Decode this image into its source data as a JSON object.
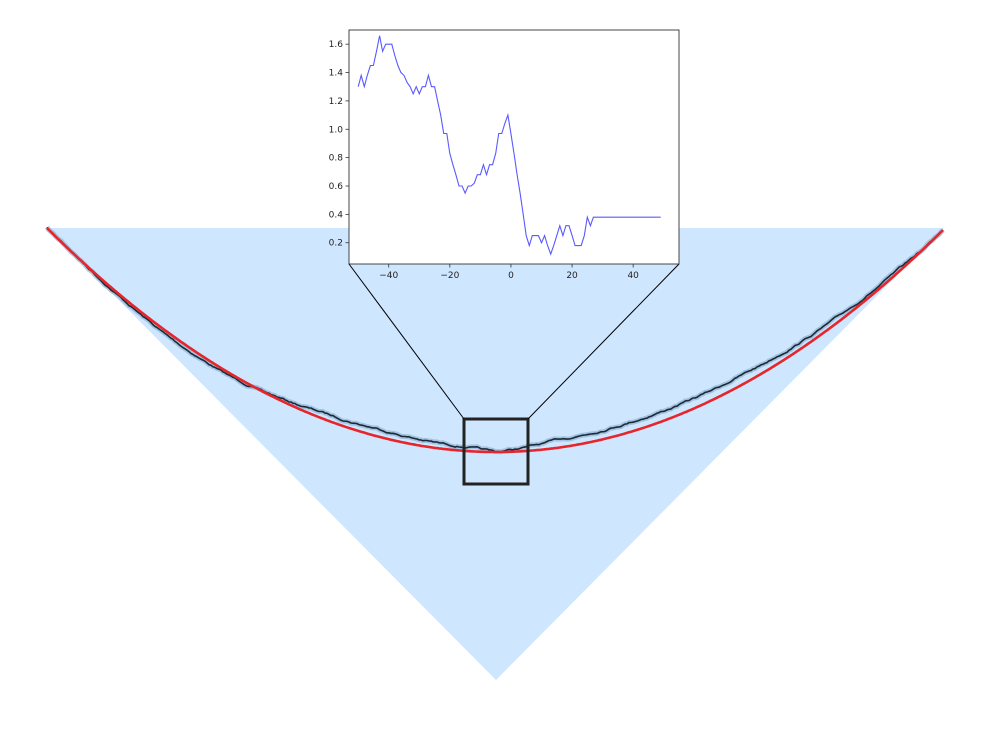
{
  "colors": {
    "fill": "#cfe6ff",
    "interface": "#1c2a36",
    "interface_halo": "#8fb3d6",
    "limit_curve": "#e6262b",
    "zoom_box": "#222222",
    "connector": "#000000",
    "inset_line": "#5a5aff",
    "background": "#ffffff"
  },
  "chart_data": [
    {
      "type": "area",
      "description_none": "",
      "elements": [
        "light blue wedge region",
        "rough black interface",
        "smooth red limit curve",
        "black zoom rectangle with connector lines"
      ],
      "grid": false,
      "axes_visible": false
    },
    {
      "type": "line",
      "xlim": [
        -53,
        55
      ],
      "ylim": [
        0.05,
        1.7
      ],
      "grid": false,
      "x_ticks": [
        "−40",
        "−20",
        "0",
        "20",
        "40"
      ],
      "x_tick_values": [
        -40,
        -20,
        0,
        20,
        40
      ],
      "y_ticks": [
        "0.2",
        "0.4",
        "0.6",
        "0.8",
        "1.0",
        "1.2",
        "1.4",
        "1.6"
      ],
      "y_tick_values": [
        0.2,
        0.4,
        0.6,
        0.8,
        1.0,
        1.2,
        1.4,
        1.6
      ],
      "series": [
        {
          "x": [
            -50,
            -49,
            -48,
            -47,
            -46,
            -45,
            -44,
            -43,
            -42,
            -41,
            -40,
            -39,
            -38,
            -37,
            -36,
            -35,
            -34,
            -33,
            -32,
            -31,
            -30,
            -29,
            -28,
            -27,
            -26,
            -25,
            -24,
            -23,
            -22,
            -21,
            -20,
            -19,
            -18,
            -17,
            -16,
            -15,
            -14,
            -13,
            -12,
            -11,
            -10,
            -9,
            -8,
            -7,
            -6,
            -5,
            -4,
            -3,
            -2,
            -1,
            0,
            1,
            2,
            3,
            4,
            5,
            6,
            7,
            8,
            9,
            10,
            11,
            12,
            13,
            14,
            15,
            16,
            17,
            18,
            19,
            20,
            21,
            22,
            23,
            24,
            25,
            26,
            27,
            28,
            29,
            30,
            31,
            32,
            33,
            34,
            35,
            36,
            37,
            38,
            39,
            40,
            41,
            42,
            43,
            44,
            45,
            46,
            47,
            48,
            49
          ],
          "y": [
            1.3,
            1.38,
            1.3,
            1.38,
            1.45,
            1.45,
            1.55,
            1.66,
            1.55,
            1.6,
            1.6,
            1.6,
            1.52,
            1.45,
            1.4,
            1.38,
            1.33,
            1.3,
            1.25,
            1.3,
            1.25,
            1.3,
            1.3,
            1.38,
            1.3,
            1.3,
            1.2,
            1.1,
            0.97,
            0.97,
            0.83,
            0.75,
            0.68,
            0.6,
            0.6,
            0.55,
            0.6,
            0.6,
            0.62,
            0.68,
            0.68,
            0.75,
            0.68,
            0.75,
            0.75,
            0.83,
            0.97,
            0.97,
            1.04,
            1.1,
            0.97,
            0.83,
            0.68,
            0.55,
            0.4,
            0.25,
            0.18,
            0.25,
            0.25,
            0.25,
            0.2,
            0.25,
            0.18,
            0.12,
            0.18,
            0.25,
            0.32,
            0.25,
            0.32,
            0.32,
            0.25,
            0.18,
            0.18,
            0.18,
            0.25,
            0.38,
            0.32,
            0.38,
            0.38,
            0.38,
            0.38,
            0.38,
            0.38,
            0.38,
            0.38,
            0.38,
            0.38,
            0.38,
            0.38,
            0.38,
            0.38,
            0.38,
            0.38,
            0.38,
            0.38,
            0.38,
            0.38,
            0.38,
            0.38,
            0.38
          ]
        }
      ]
    }
  ]
}
